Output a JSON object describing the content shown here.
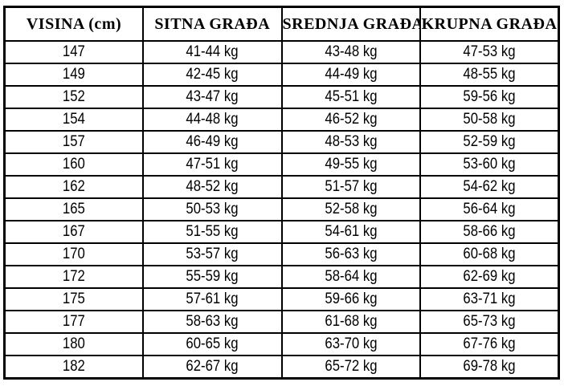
{
  "table": {
    "name": "height-weight-chart",
    "columns": [
      "VISINA (cm)",
      "SITNA GRAĐA",
      "SREDNJA GRAĐA",
      "KRUPNA GRAĐA"
    ],
    "rows": [
      [
        "147",
        "41-44 kg",
        "43-48 kg",
        "47-53 kg"
      ],
      [
        "149",
        "42-45 kg",
        "44-49 kg",
        "48-55 kg"
      ],
      [
        "152",
        "43-47 kg",
        "45-51 kg",
        "59-56 kg"
      ],
      [
        "154",
        "44-48 kg",
        "46-52 kg",
        "50-58 kg"
      ],
      [
        "157",
        "46-49 kg",
        "48-53 kg",
        "52-59 kg"
      ],
      [
        "160",
        "47-51 kg",
        "49-55 kg",
        "53-60 kg"
      ],
      [
        "162",
        "48-52 kg",
        "51-57 kg",
        "54-62 kg"
      ],
      [
        "165",
        "50-53 kg",
        "52-58 kg",
        "56-64 kg"
      ],
      [
        "167",
        "51-55 kg",
        "54-61 kg",
        "58-66 kg"
      ],
      [
        "170",
        "53-57 kg",
        "56-63 kg",
        "60-68 kg"
      ],
      [
        "172",
        "55-59 kg",
        "58-64 kg",
        "62-69 kg"
      ],
      [
        "175",
        "57-61 kg",
        "59-66 kg",
        "63-71 kg"
      ],
      [
        "177",
        "58-63 kg",
        "61-68 kg",
        "65-73 kg"
      ],
      [
        "180",
        "60-65 kg",
        "63-70 kg",
        "67-76 kg"
      ],
      [
        "182",
        "62-67 kg",
        "65-72 kg",
        "69-78 kg"
      ]
    ],
    "colors": {
      "border": "#000000",
      "background": "#ffffff",
      "text": "#000000"
    }
  }
}
